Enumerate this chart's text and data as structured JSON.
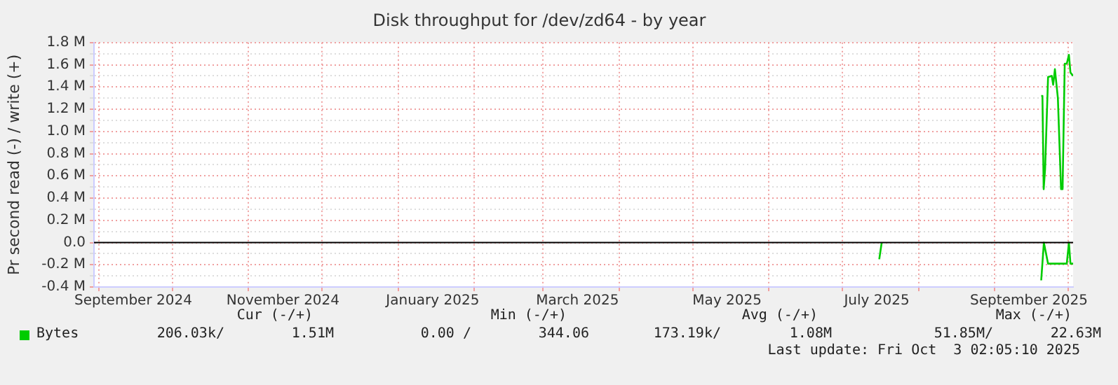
{
  "chart_data": {
    "type": "line",
    "title": "Disk throughput for /dev/zd64 - by year",
    "ylabel": "Pr second read (-) / write (+)",
    "series": [
      {
        "name": "Bytes",
        "color": "#00cc00",
        "x": [
          "2025-09-20",
          "2025-09-20T12:00",
          "2025-09-21",
          "2025-09-21T14:00",
          "2025-09-22T19:00",
          "2025-09-24T07:00",
          "2025-09-24T21:00",
          "2025-09-25T14:00",
          "2025-09-26T19:00",
          "2025-09-28T02:00",
          "2025-09-28T17:00",
          "2025-09-29T14:00",
          "2025-09-30T10:00",
          "2025-10-01T07:00",
          "2025-10-01T22:00",
          "2025-10-03"
        ],
        "values": [
          1.32,
          1.32,
          0.48,
          0.66,
          1.49,
          1.5,
          1.42,
          1.56,
          1.3,
          0.48,
          0.48,
          1.61,
          1.61,
          1.69,
          1.53,
          1.5
        ]
      },
      {
        "color": "#00cc00",
        "x": [
          "2025-07-16",
          "2025-07-17",
          "2025-08-01",
          "2025-09-20",
          "2025-09-21T02:00",
          "2025-09-22T19:00",
          "2025-09-30T10:00",
          "2025-10-01T07:00",
          "2025-10-01T22:00",
          "2025-10-03"
        ],
        "values": [
          -0.15,
          0,
          null,
          -0.34,
          0,
          -0.19,
          -0.19,
          0,
          -0.19,
          -0.19
        ]
      }
    ],
    "xlim": [
      "2024-08-30",
      "2025-10-03"
    ],
    "xticks": [
      {
        "value": "2024-09-01",
        "label": null
      },
      {
        "value": "2024-09-15",
        "label": "September 2024"
      },
      {
        "value": "2024-10-01",
        "label": null
      },
      {
        "value": "2024-11-01",
        "label": null
      },
      {
        "value": "2024-11-15",
        "label": "November 2024"
      },
      {
        "value": "2024-12-01",
        "label": null
      },
      {
        "value": "2025-01-01",
        "label": null
      },
      {
        "value": "2025-01-15",
        "label": "January 2025"
      },
      {
        "value": "2025-02-01",
        "label": null
      },
      {
        "value": "2025-03-01",
        "label": null
      },
      {
        "value": "2025-03-15",
        "label": "March 2025"
      },
      {
        "value": "2025-04-01",
        "label": null
      },
      {
        "value": "2025-05-01",
        "label": null
      },
      {
        "value": "2025-05-15",
        "label": "May 2025"
      },
      {
        "value": "2025-06-01",
        "label": null
      },
      {
        "value": "2025-07-01",
        "label": null
      },
      {
        "value": "2025-07-15",
        "label": "July 2025"
      },
      {
        "value": "2025-08-01",
        "label": null
      },
      {
        "value": "2025-09-01",
        "label": null
      },
      {
        "value": "2025-09-15",
        "label": "September 2025"
      },
      {
        "value": "2025-10-01",
        "label": null
      }
    ],
    "ylim": [
      -0.4,
      1.8
    ],
    "yticks": [
      {
        "value": -0.4,
        "label": "-0.4 M"
      },
      {
        "value": -0.3,
        "label": null
      },
      {
        "value": -0.2,
        "label": "-0.2 M"
      },
      {
        "value": -0.1,
        "label": null
      },
      {
        "value": 0,
        "label": "0.0"
      },
      {
        "value": 0.1,
        "label": null
      },
      {
        "value": 0.2,
        "label": "0.2 M"
      },
      {
        "value": 0.3,
        "label": null
      },
      {
        "value": 0.4,
        "label": "0.4 M"
      },
      {
        "value": 0.5,
        "label": null
      },
      {
        "value": 0.6,
        "label": "0.6 M"
      },
      {
        "value": 0.7,
        "label": null
      },
      {
        "value": 0.8,
        "label": "0.8 M"
      },
      {
        "value": 0.9,
        "label": null
      },
      {
        "value": 1.0,
        "label": "1.0 M"
      },
      {
        "value": 1.1,
        "label": null
      },
      {
        "value": 1.2,
        "label": "1.2 M"
      },
      {
        "value": 1.3,
        "label": null
      },
      {
        "value": 1.4,
        "label": "1.4 M"
      },
      {
        "value": 1.5,
        "label": null
      },
      {
        "value": 1.6,
        "label": "1.6 M"
      },
      {
        "value": 1.7,
        "label": null
      },
      {
        "value": 1.8,
        "label": "1.8 M"
      }
    ],
    "ref_lines": [
      {
        "axis": "y",
        "value": 0,
        "color": "#000000"
      }
    ],
    "grid": true,
    "legend": "bottom left",
    "marker": "none",
    "line_style": "solid",
    "annotations": [
      "Cur (-/+)",
      "Min (-/+)",
      "Avg (-/+)",
      "Max (-/+)",
      "206.03k/",
      "1.51M",
      "0.00 /",
      "344.06",
      "173.19k/",
      "1.08M",
      "51.85M/",
      "22.63M",
      "Last update: Fri Oct  3 02:05:10 2025"
    ]
  }
}
